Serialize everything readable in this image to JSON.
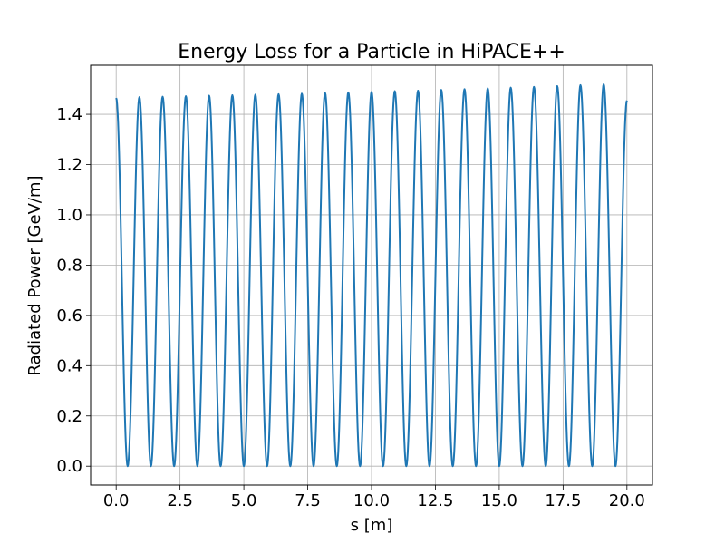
{
  "chart_data": {
    "type": "line",
    "title": "Energy Loss for a Particle in HiPACE++",
    "xlabel": "s [m]",
    "ylabel": "Radiated Power [GeV/m]",
    "xlim": [
      -1.0,
      21.0
    ],
    "ylim": [
      -0.075,
      1.595
    ],
    "grid": true,
    "x_ticks": [
      0,
      2.5,
      5,
      7.5,
      10,
      12.5,
      15,
      17.5,
      20
    ],
    "x_tick_labels": [
      "0.0",
      "2.5",
      "5.0",
      "7.5",
      "10.0",
      "12.5",
      "15.0",
      "17.5",
      "20.0"
    ],
    "y_ticks": [
      0,
      0.2,
      0.4,
      0.6,
      0.8,
      1.0,
      1.2,
      1.4
    ],
    "y_tick_labels": [
      "0.0",
      "0.2",
      "0.4",
      "0.6",
      "0.8",
      "1.0",
      "1.2",
      "1.4"
    ],
    "line_color": "#1f77b4",
    "grid_color": "#b0b0b0",
    "series": [
      {
        "x": [
          0,
          0.45,
          0.91,
          1.36,
          1.82,
          2.27,
          2.73,
          3.18,
          3.64,
          4.09,
          4.55,
          5.0,
          5.45,
          5.91,
          6.36,
          6.82,
          7.27,
          7.73,
          8.18,
          8.64,
          9.09,
          9.55,
          10.0,
          10.45,
          10.91,
          11.36,
          11.82,
          12.27,
          12.73,
          13.18,
          13.64,
          14.09,
          14.55,
          15.0,
          15.45,
          15.91,
          16.36,
          16.82,
          17.27,
          17.73,
          18.18,
          18.64,
          19.09,
          19.55,
          20.0
        ],
        "y": [
          1.465,
          0.0,
          1.468,
          0.0,
          1.47,
          0.0,
          1.472,
          0.0,
          1.474,
          0.0,
          1.476,
          0.0,
          1.478,
          0.0,
          1.48,
          0.0,
          1.482,
          0.0,
          1.485,
          0.0,
          1.487,
          0.0,
          1.489,
          0.0,
          1.492,
          0.0,
          1.494,
          0.0,
          1.497,
          0.0,
          1.5,
          0.0,
          1.503,
          0.0,
          1.506,
          0.0,
          1.509,
          0.0,
          1.512,
          0.0,
          1.516,
          0.0,
          1.519,
          0.0,
          1.455
        ]
      }
    ]
  }
}
